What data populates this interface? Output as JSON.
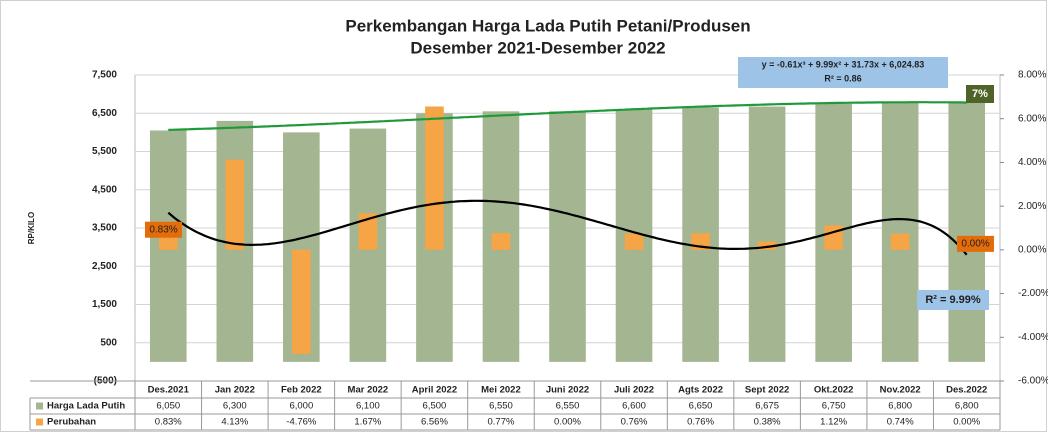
{
  "chart_data": {
    "type": "bar",
    "title": "Perkembangan Harga Lada Putih Petani/Produsen",
    "subtitle": "Desember  2021-Desember 2022",
    "y_label": "RP/KILO",
    "categories": [
      "Des.2021",
      "Jan 2022",
      "Feb 2022",
      "Mar 2022",
      "April 2022",
      "Mei 2022",
      "Juni 2022",
      "Juli 2022",
      "Agts 2022",
      "Sept 2022",
      "Okt.2022",
      "Nov.2022",
      "Des.2022"
    ],
    "series": [
      {
        "name": "Harga Lada Putih",
        "color": "#a4b592",
        "trend_color": "#1f9a3a",
        "trend_degree": 3,
        "values": [
          6050,
          6300,
          6000,
          6100,
          6500,
          6550,
          6550,
          6600,
          6650,
          6675,
          6750,
          6800,
          6800
        ],
        "value_labels": [
          "6,050",
          "6,300",
          "6,000",
          "6,100",
          "6,500",
          "6,550",
          "6,550",
          "6,600",
          "6,650",
          "6,675",
          "6,750",
          "6,800",
          "6,800"
        ]
      },
      {
        "name": "Perubahan",
        "color": "#f5a446",
        "axis": "y2",
        "trend_color": "#000000",
        "trend_degree": 6,
        "values": [
          0.83,
          4.13,
          -4.76,
          1.67,
          6.56,
          0.77,
          0.0,
          0.76,
          0.76,
          0.38,
          1.12,
          0.74,
          0.0
        ],
        "value_labels": [
          "0.83%",
          "4.13%",
          "-4.76%",
          "1.67%",
          "6.56%",
          "0.77%",
          "0.00%",
          "0.76%",
          "0.76%",
          "0.38%",
          "1.12%",
          "0.74%",
          "0.00%"
        ]
      }
    ],
    "ylim": [
      -500,
      7500
    ],
    "yticks": [
      {
        "value": -500,
        "label": "(500)"
      },
      500,
      {
        "value": 1500,
        "label": "1,500"
      },
      {
        "value": 2500,
        "label": "2,500"
      },
      {
        "value": 3500,
        "label": "3,500"
      },
      {
        "value": 4500,
        "label": "4,500"
      },
      {
        "value": 5500,
        "label": "5,500"
      },
      {
        "value": 6500,
        "label": "6,500"
      },
      {
        "value": 7500,
        "label": "7,500"
      }
    ],
    "y2lim": [
      -6,
      8
    ],
    "y2ticks": [
      {
        "value": -6,
        "label": "-6.00%"
      },
      {
        "value": -4,
        "label": "-4.00%"
      },
      {
        "value": -2,
        "label": "-2.00%"
      },
      {
        "value": 0,
        "label": "0.00%"
      },
      {
        "value": 2,
        "label": "2.00%"
      },
      {
        "value": 4,
        "label": "4.00%"
      },
      {
        "value": 6,
        "label": "6.00%"
      },
      {
        "value": 8,
        "label": "8.00%"
      }
    ],
    "grid": true,
    "annotations": [
      "y = -0.61x³ + 9.99x² + 31.73x + 6,024.83",
      "R² = 0.86",
      "7%",
      "R² = 9.99%"
    ]
  }
}
